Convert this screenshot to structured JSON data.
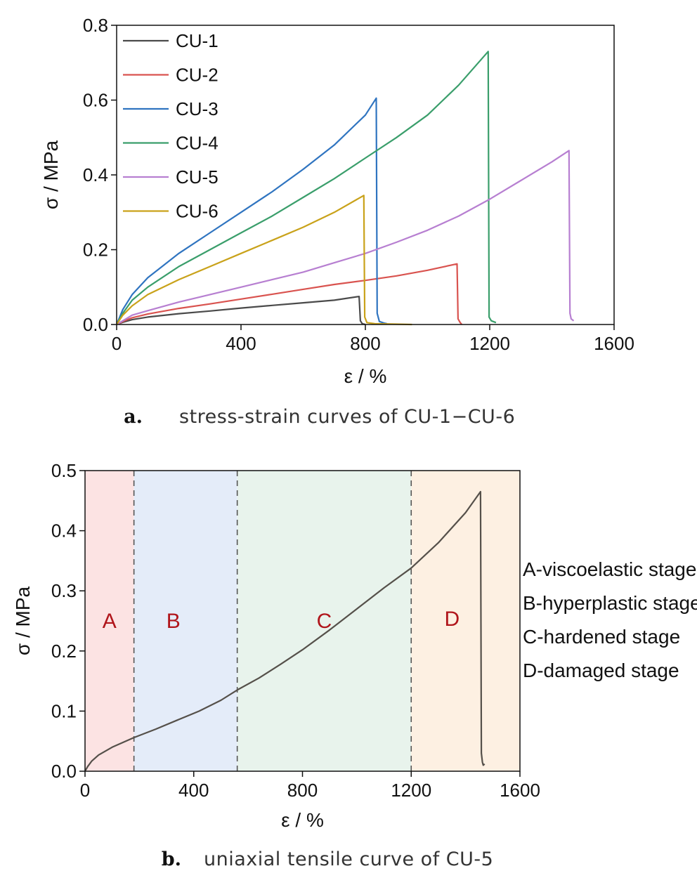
{
  "chart_data": [
    {
      "type": "line",
      "xlabel": "ε / %",
      "ylabel": "σ / MPa",
      "xlim": [
        0,
        1600
      ],
      "ylim": [
        0,
        0.8
      ],
      "xticks": [
        "0",
        "400",
        "800",
        "1200",
        "1600"
      ],
      "yticks": [
        "0.0",
        "0.2",
        "0.4",
        "0.6",
        "0.8"
      ],
      "legend_position": "top-left",
      "caption_letter": "a.",
      "caption": "stress-strain curves of CU-1−CU-6",
      "series": [
        {
          "name": "CU-1",
          "color": "#4a4a4a",
          "points": [
            [
              0,
              0
            ],
            [
              20,
              0.006
            ],
            [
              50,
              0.013
            ],
            [
              100,
              0.02
            ],
            [
              200,
              0.029
            ],
            [
              300,
              0.036
            ],
            [
              400,
              0.044
            ],
            [
              500,
              0.051
            ],
            [
              600,
              0.058
            ],
            [
              700,
              0.065
            ],
            [
              780,
              0.075
            ],
            [
              784,
              0.01
            ],
            [
              790,
              0.002
            ],
            [
              800,
              0.0
            ]
          ]
        },
        {
          "name": "CU-2",
          "color": "#d9534f",
          "points": [
            [
              0,
              0
            ],
            [
              20,
              0.008
            ],
            [
              50,
              0.018
            ],
            [
              100,
              0.028
            ],
            [
              200,
              0.043
            ],
            [
              300,
              0.055
            ],
            [
              400,
              0.068
            ],
            [
              500,
              0.081
            ],
            [
              600,
              0.094
            ],
            [
              700,
              0.107
            ],
            [
              800,
              0.118
            ],
            [
              900,
              0.13
            ],
            [
              1000,
              0.145
            ],
            [
              1095,
              0.162
            ],
            [
              1098,
              0.015
            ],
            [
              1105,
              0.005
            ],
            [
              1110,
              0.0
            ]
          ]
        },
        {
          "name": "CU-3",
          "color": "#2f74c0",
          "points": [
            [
              0,
              0
            ],
            [
              20,
              0.04
            ],
            [
              50,
              0.08
            ],
            [
              100,
              0.125
            ],
            [
              200,
              0.19
            ],
            [
              300,
              0.245
            ],
            [
              400,
              0.3
            ],
            [
              500,
              0.355
            ],
            [
              600,
              0.415
            ],
            [
              700,
              0.48
            ],
            [
              800,
              0.56
            ],
            [
              835,
              0.605
            ],
            [
              838,
              0.03
            ],
            [
              845,
              0.008
            ],
            [
              860,
              0.004
            ],
            [
              870,
              0.002
            ]
          ]
        },
        {
          "name": "CU-4",
          "color": "#3a9e6b",
          "points": [
            [
              0,
              0
            ],
            [
              20,
              0.03
            ],
            [
              50,
              0.065
            ],
            [
              100,
              0.1
            ],
            [
              200,
              0.155
            ],
            [
              300,
              0.2
            ],
            [
              400,
              0.245
            ],
            [
              500,
              0.29
            ],
            [
              600,
              0.34
            ],
            [
              700,
              0.39
            ],
            [
              800,
              0.445
            ],
            [
              900,
              0.5
            ],
            [
              1000,
              0.56
            ],
            [
              1100,
              0.64
            ],
            [
              1195,
              0.73
            ],
            [
              1198,
              0.02
            ],
            [
              1205,
              0.01
            ],
            [
              1220,
              0.005
            ]
          ]
        },
        {
          "name": "CU-5",
          "color": "#b77fd1",
          "points": [
            [
              0,
              0
            ],
            [
              20,
              0.01
            ],
            [
              50,
              0.025
            ],
            [
              100,
              0.037
            ],
            [
              200,
              0.06
            ],
            [
              300,
              0.08
            ],
            [
              400,
              0.1
            ],
            [
              500,
              0.12
            ],
            [
              600,
              0.14
            ],
            [
              700,
              0.165
            ],
            [
              800,
              0.19
            ],
            [
              900,
              0.22
            ],
            [
              1000,
              0.252
            ],
            [
              1100,
              0.29
            ],
            [
              1200,
              0.335
            ],
            [
              1300,
              0.385
            ],
            [
              1400,
              0.435
            ],
            [
              1455,
              0.465
            ],
            [
              1458,
              0.03
            ],
            [
              1462,
              0.015
            ],
            [
              1470,
              0.01
            ]
          ]
        },
        {
          "name": "CU-6",
          "color": "#c9a21a",
          "points": [
            [
              0,
              0
            ],
            [
              20,
              0.025
            ],
            [
              50,
              0.05
            ],
            [
              100,
              0.08
            ],
            [
              200,
              0.12
            ],
            [
              300,
              0.155
            ],
            [
              400,
              0.19
            ],
            [
              500,
              0.225
            ],
            [
              600,
              0.26
            ],
            [
              700,
              0.3
            ],
            [
              795,
              0.345
            ],
            [
              798,
              0.02
            ],
            [
              805,
              0.005
            ],
            [
              830,
              0.002
            ],
            [
              900,
              0.001
            ],
            [
              950,
              0.0
            ]
          ]
        }
      ]
    },
    {
      "type": "line",
      "xlabel": "ε / %",
      "ylabel": "σ / MPa",
      "xlim": [
        0,
        1600
      ],
      "ylim": [
        0,
        0.5
      ],
      "xticks": [
        "0",
        "400",
        "800",
        "1200",
        "1600"
      ],
      "yticks": [
        "0.0",
        "0.1",
        "0.2",
        "0.3",
        "0.4",
        "0.5"
      ],
      "caption_letter": "b.",
      "caption": "uniaxial tensile curve of CU-5",
      "curve_color": "#55504a",
      "regions": [
        {
          "label": "A",
          "x_start": 0,
          "x_end": 180,
          "color": "#fce3e3"
        },
        {
          "label": "B",
          "x_start": 180,
          "x_end": 560,
          "color": "#e4ecf9"
        },
        {
          "label": "C",
          "x_start": 560,
          "x_end": 1200,
          "color": "#e8f3ec"
        },
        {
          "label": "D",
          "x_start": 1200,
          "x_end": 1600,
          "color": "#fdf0e2"
        }
      ],
      "boundaries": [
        180,
        560,
        1200
      ],
      "stage_descriptions": [
        "A-viscoelastic stage",
        "B-hyperplastic stage",
        "C-hardened stage",
        "D-damaged stage"
      ],
      "points": [
        [
          0,
          0
        ],
        [
          10,
          0.008
        ],
        [
          25,
          0.017
        ],
        [
          50,
          0.027
        ],
        [
          100,
          0.04
        ],
        [
          180,
          0.056
        ],
        [
          260,
          0.07
        ],
        [
          340,
          0.085
        ],
        [
          420,
          0.1
        ],
        [
          500,
          0.118
        ],
        [
          560,
          0.135
        ],
        [
          640,
          0.155
        ],
        [
          720,
          0.178
        ],
        [
          800,
          0.202
        ],
        [
          900,
          0.235
        ],
        [
          1000,
          0.27
        ],
        [
          1100,
          0.305
        ],
        [
          1200,
          0.338
        ],
        [
          1300,
          0.38
        ],
        [
          1400,
          0.43
        ],
        [
          1455,
          0.465
        ],
        [
          1458,
          0.03
        ],
        [
          1462,
          0.015
        ],
        [
          1465,
          0.01
        ],
        [
          1470,
          0.012
        ]
      ]
    }
  ]
}
